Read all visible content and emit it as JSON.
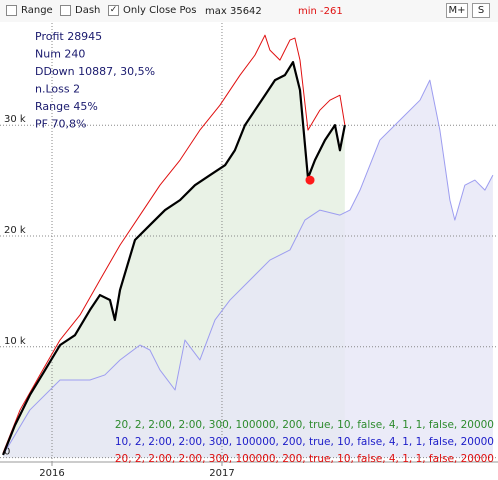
{
  "toolbar": {
    "checkboxes": [
      {
        "label": "Range",
        "checked": false
      },
      {
        "label": "Dash",
        "checked": false
      },
      {
        "label": "Only Close Pos",
        "checked": true
      }
    ],
    "max_label": "max 35642",
    "min_label": "min -261",
    "buttons": [
      "M+",
      "S"
    ]
  },
  "stats": [
    "Profit 28945",
    "Num 240",
    "DDown 10887, 30,5%",
    "n.Loss 2",
    "Range 45%",
    "PF 70,8%"
  ],
  "chart_data": {
    "type": "line",
    "xlim": [
      2015.694,
      2018.624
    ],
    "xticks": [
      2016,
      2017
    ],
    "ylim": [
      -400,
      39500
    ],
    "yticks": [
      0,
      {
        "value": 10000,
        "label": "10 k"
      },
      {
        "value": 20000,
        "label": "20 k"
      },
      {
        "value": 30000,
        "label": "30 k"
      }
    ],
    "grid": true,
    "series": [
      {
        "name": "20, 2, 2:00, 2:00, 300, 100000, 200, true, 10, false, 4, 1, 1, false, 20000",
        "color": "#000000",
        "legend_color": "#2e8b2e",
        "fill": "#e4efe0",
        "x": [
          2015.712,
          2015.782,
          2015.87,
          2015.959,
          2016.047,
          2016.135,
          2016.223,
          2016.282,
          2016.341,
          2016.37,
          2016.4,
          2016.488,
          2016.576,
          2016.665,
          2016.753,
          2016.841,
          2016.929,
          2017.018,
          2017.076,
          2017.135,
          2017.194,
          2017.253,
          2017.312,
          2017.37,
          2017.418,
          2017.459,
          2017.506,
          2017.547,
          2017.606,
          2017.665,
          2017.694,
          2017.723
        ],
        "values": [
          235,
          2920,
          5650,
          7900,
          10150,
          11050,
          13320,
          14670,
          14220,
          12420,
          15120,
          19640,
          20990,
          22340,
          23240,
          24590,
          25490,
          26390,
          27740,
          30000,
          31360,
          32710,
          34070,
          34520,
          35700,
          33170,
          25230,
          26850,
          28660,
          30010,
          27740,
          30010
        ]
      },
      {
        "name": "10, 2, 2:00, 2:00, 300, 100000, 200, true, 10, false, 4, 1, 1, false, 20000",
        "color": "#9d9df0",
        "legend_color": "#1c1cc8",
        "fill": "#e6e6f6",
        "x": [
          2015.712,
          2015.87,
          2016.047,
          2016.223,
          2016.311,
          2016.4,
          2016.518,
          2016.576,
          2016.635,
          2016.724,
          2016.782,
          2016.87,
          2016.959,
          2017.047,
          2017.165,
          2017.282,
          2017.4,
          2017.488,
          2017.576,
          2017.694,
          2017.753,
          2017.812,
          2017.929,
          2018.047,
          2018.165,
          2018.223,
          2018.282,
          2018.341,
          2018.37,
          2018.429,
          2018.488,
          2018.547,
          2018.594
        ],
        "values": [
          235,
          4300,
          7000,
          7000,
          7460,
          8810,
          10160,
          9710,
          7910,
          6100,
          10610,
          8810,
          12420,
          14220,
          16030,
          17830,
          18740,
          21440,
          22340,
          21890,
          22340,
          24140,
          28660,
          30460,
          32260,
          34070,
          29560,
          23240,
          21440,
          24590,
          25050,
          24140,
          25500
        ]
      },
      {
        "name": "20, 2, 2:00, 2:00, 300, 100000, 200, true, 10, false, 4, 1, 1, false, 20000",
        "color": "#e01010",
        "legend_color": "#e01010",
        "x": [
          2015.712,
          2015.812,
          2015.929,
          2016.047,
          2016.165,
          2016.282,
          2016.4,
          2016.518,
          2016.635,
          2016.753,
          2016.87,
          2016.988,
          2017.106,
          2017.194,
          2017.253,
          2017.282,
          2017.341,
          2017.4,
          2017.429,
          2017.459,
          2017.506,
          2017.576,
          2017.635,
          2017.694,
          2017.723
        ],
        "values": [
          415,
          4300,
          7460,
          10610,
          12870,
          16030,
          19180,
          21890,
          24590,
          26850,
          29560,
          31810,
          34520,
          36330,
          38130,
          36780,
          35880,
          37690,
          37870,
          35880,
          29560,
          31360,
          32260,
          32710,
          30010
        ]
      }
    ],
    "min_point": {
      "x": 2017.518,
      "value": 25050,
      "color": "#ff1a1a"
    }
  }
}
